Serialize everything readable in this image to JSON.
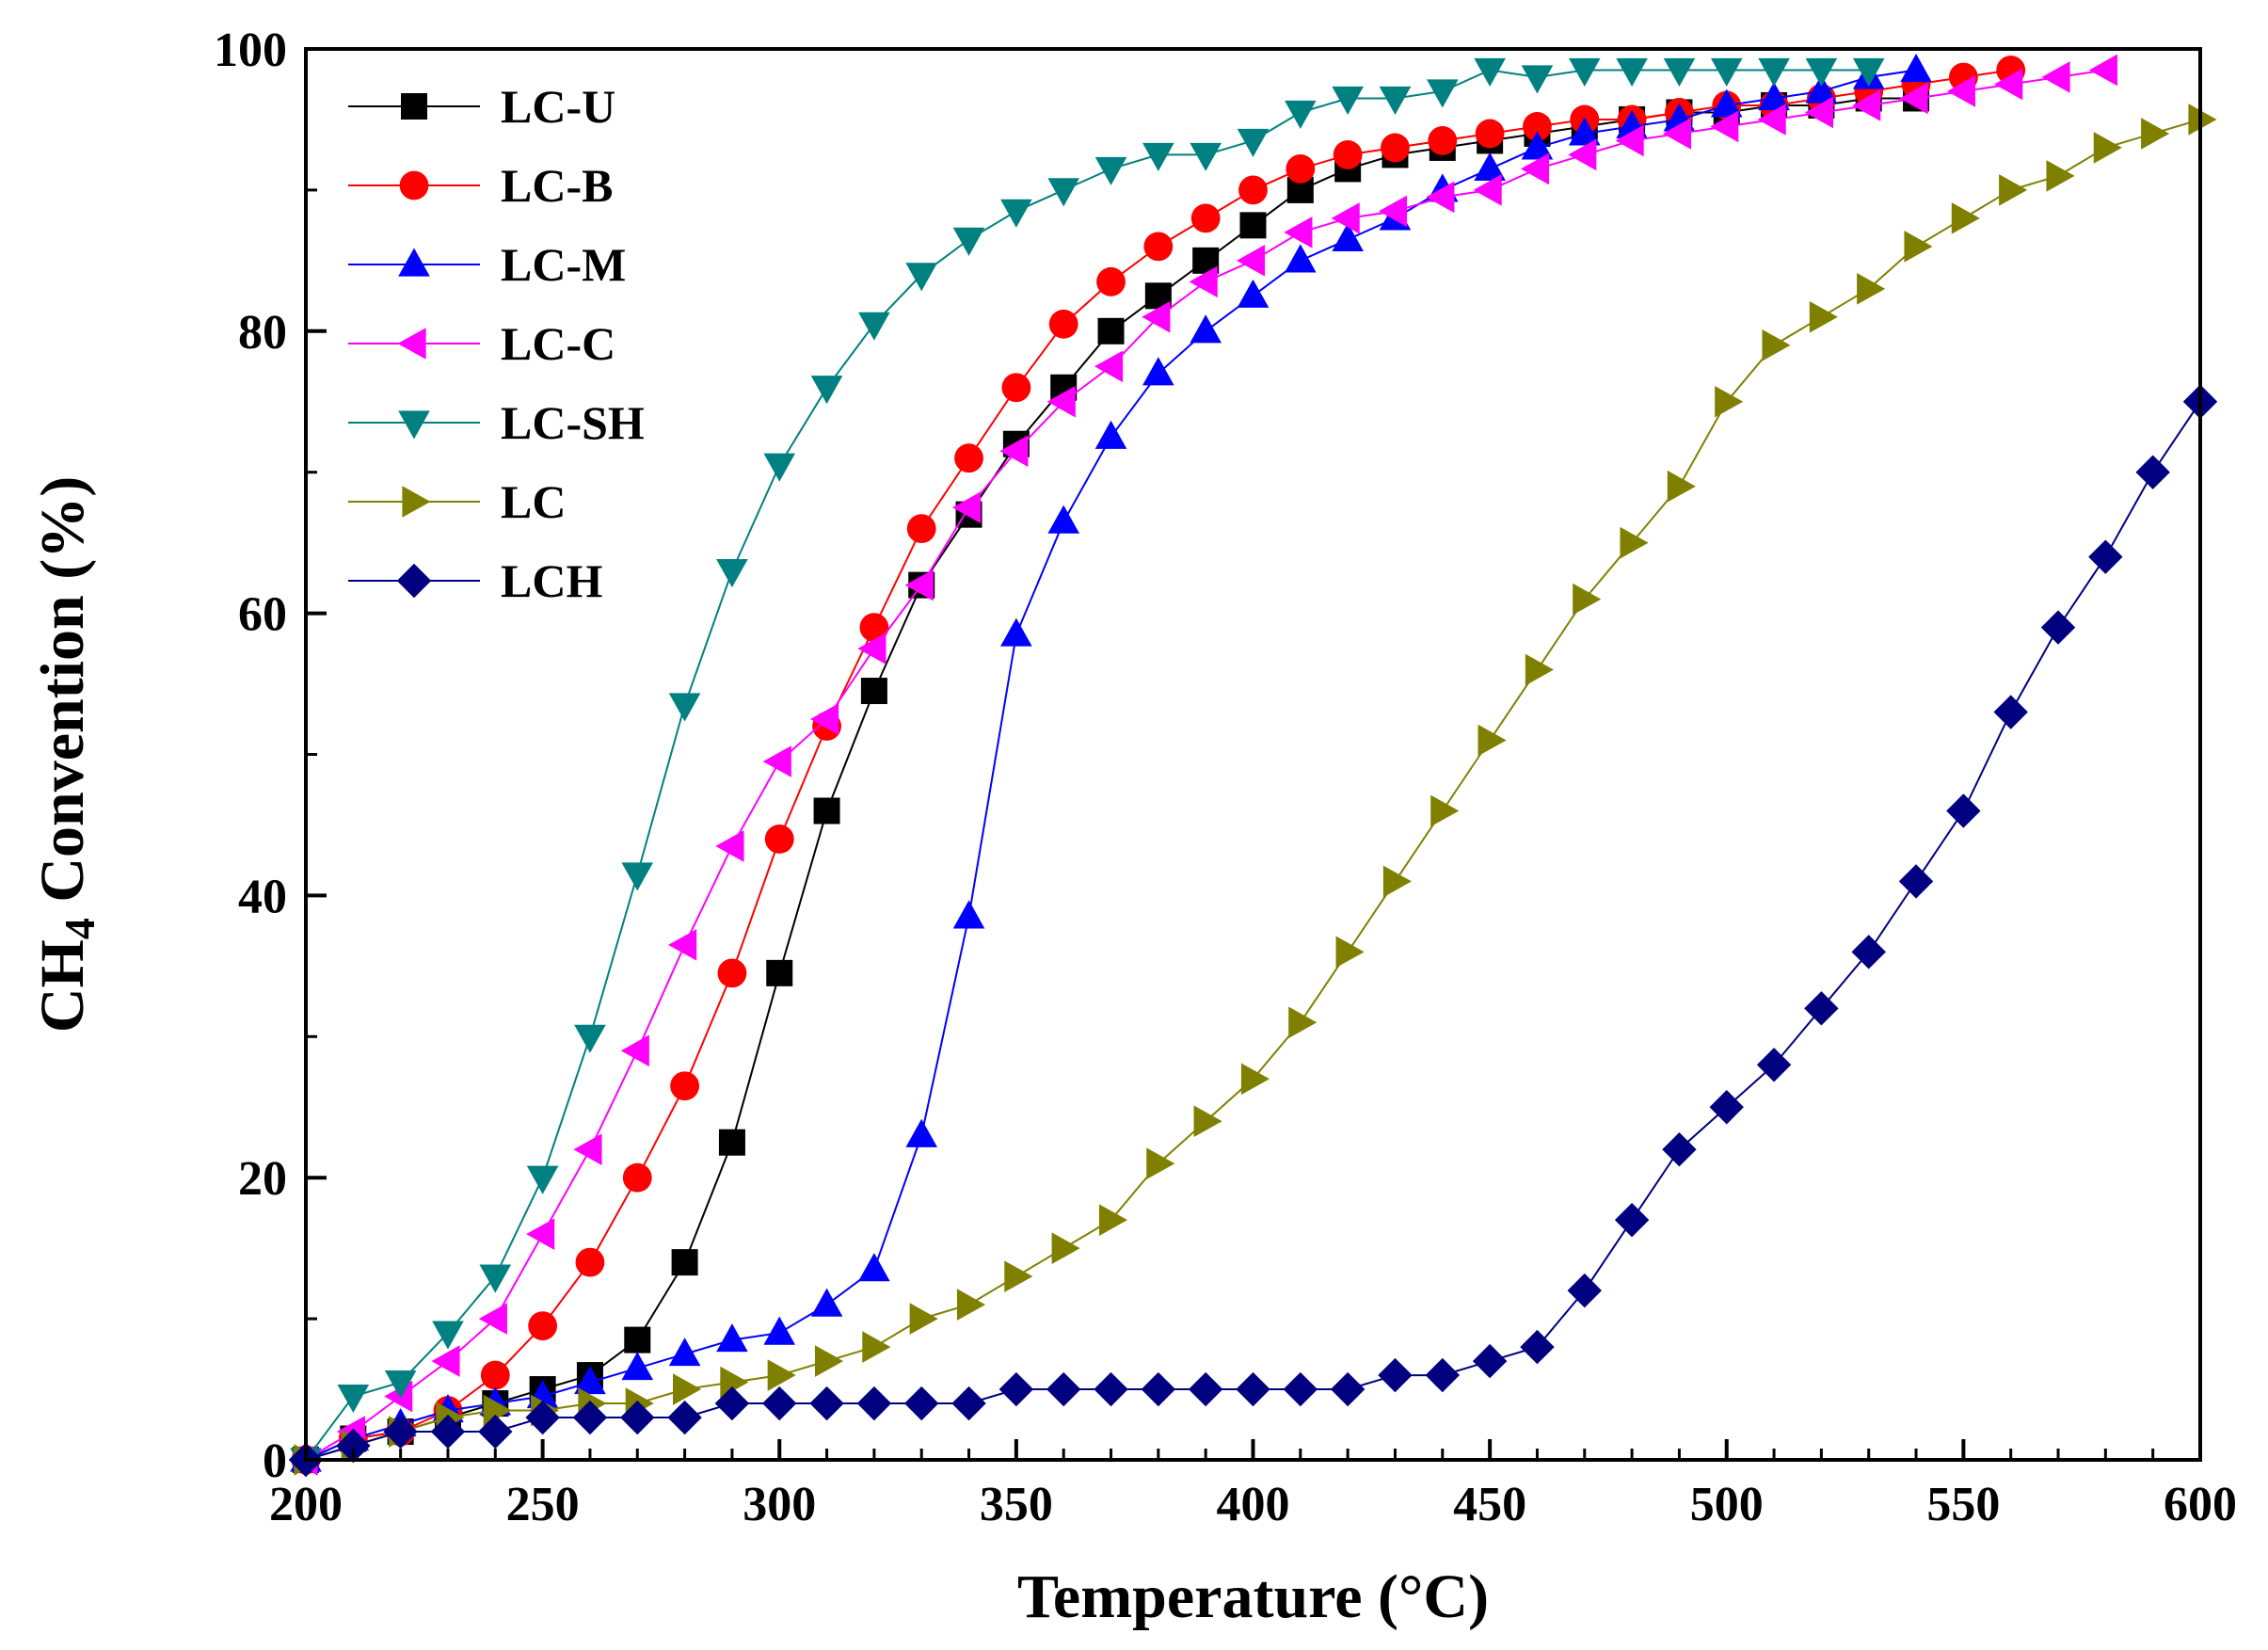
{
  "chart_data": {
    "type": "line",
    "title": "",
    "xlabel": "Temperature (°C)",
    "ylabel_main": "CH",
    "ylabel_sub": "4",
    "ylabel_rest": " Convention (%)",
    "xlim": [
      200,
      600
    ],
    "ylim": [
      0,
      100
    ],
    "xticks": [
      200,
      250,
      300,
      350,
      400,
      450,
      500,
      550,
      600
    ],
    "xtick_labels": [
      "200",
      "250",
      "300",
      "350",
      "400",
      "450",
      "500",
      "550",
      "600"
    ],
    "yticks": [
      0,
      20,
      40,
      60,
      80,
      100
    ],
    "ytick_labels": [
      "0",
      "20",
      "40",
      "60",
      "80",
      "100"
    ],
    "grid": false,
    "legend_position": "top-left",
    "series": [
      {
        "name": "LC-U",
        "color": "#000000",
        "marker": "square",
        "x": [
          200,
          210,
          220,
          230,
          240,
          250,
          260,
          270,
          280,
          290,
          300,
          310,
          320,
          330,
          340,
          350,
          360,
          370,
          380,
          390,
          400,
          410,
          420,
          430,
          440,
          450,
          460,
          470,
          480,
          490,
          500,
          510,
          520,
          530,
          540
        ],
        "y": [
          0,
          1.5,
          2,
          3,
          4,
          5,
          6,
          8.5,
          14,
          22.5,
          34.5,
          46,
          54.5,
          62,
          67,
          72,
          76,
          80,
          82.5,
          85,
          87.5,
          90,
          91.5,
          92.5,
          93,
          93.5,
          94,
          94.5,
          95,
          95.5,
          95.5,
          96,
          96,
          96.5,
          96.5
        ]
      },
      {
        "name": "LC-B",
        "color": "#ff0000",
        "marker": "circle",
        "x": [
          200,
          210,
          220,
          230,
          240,
          250,
          260,
          270,
          280,
          290,
          300,
          310,
          320,
          330,
          340,
          350,
          360,
          370,
          380,
          390,
          400,
          410,
          420,
          430,
          440,
          450,
          460,
          470,
          480,
          490,
          500,
          510,
          520,
          530,
          540,
          550,
          560
        ],
        "y": [
          0,
          1.5,
          2,
          3.5,
          6,
          9.5,
          14,
          20,
          26.5,
          34.5,
          44,
          52,
          59,
          66,
          71,
          76,
          80.5,
          83.5,
          86,
          88,
          90,
          91.5,
          92.5,
          93,
          93.5,
          94,
          94.5,
          95,
          95,
          95.5,
          96,
          96,
          96.5,
          97,
          97.5,
          98,
          98.5
        ]
      },
      {
        "name": "LC-M",
        "color": "#0000ff",
        "marker": "triangle-up",
        "x": [
          200,
          210,
          220,
          230,
          240,
          250,
          260,
          270,
          280,
          290,
          300,
          310,
          320,
          330,
          340,
          350,
          360,
          370,
          380,
          390,
          400,
          410,
          420,
          430,
          440,
          450,
          460,
          470,
          480,
          490,
          500,
          510,
          520,
          530,
          540
        ],
        "y": [
          0,
          1.5,
          2.5,
          3.5,
          4,
          4.5,
          5.5,
          6.5,
          7.5,
          8.5,
          9,
          11,
          13.5,
          23,
          38.5,
          58.5,
          66.5,
          72.5,
          77,
          80,
          82.5,
          85,
          86.5,
          88,
          90,
          91.5,
          93,
          94,
          94.5,
          95,
          96,
          96.5,
          97,
          98,
          98.5
        ]
      },
      {
        "name": "LC-C",
        "color": "#ff00ff",
        "marker": "triangle-left",
        "x": [
          200,
          210,
          220,
          230,
          240,
          250,
          260,
          270,
          280,
          290,
          300,
          310,
          320,
          330,
          340,
          350,
          360,
          370,
          380,
          390,
          400,
          410,
          420,
          430,
          440,
          450,
          460,
          470,
          480,
          490,
          500,
          510,
          520,
          530,
          540,
          550,
          560,
          570,
          580
        ],
        "y": [
          0,
          2,
          4.5,
          7,
          10,
          16,
          22,
          29,
          36.5,
          43.5,
          49.5,
          52.5,
          57.5,
          62,
          67.5,
          71.5,
          75,
          77.5,
          81,
          83.5,
          85,
          87,
          88,
          88.5,
          89.5,
          90,
          91.5,
          92.5,
          93.5,
          94,
          94.5,
          95,
          95.5,
          96,
          96.5,
          97,
          97.5,
          98,
          98.5
        ]
      },
      {
        "name": "LC-SH",
        "color": "#008080",
        "marker": "triangle-down",
        "x": [
          200,
          210,
          220,
          230,
          240,
          250,
          260,
          270,
          280,
          290,
          300,
          310,
          320,
          330,
          340,
          350,
          360,
          370,
          380,
          390,
          400,
          410,
          420,
          430,
          440,
          450,
          460,
          470,
          480,
          490,
          500,
          510,
          520,
          530
        ],
        "y": [
          0,
          4.5,
          5.5,
          9,
          13,
          20,
          30,
          41.5,
          53.5,
          63,
          70.5,
          76,
          80.5,
          84,
          86.5,
          88.5,
          90,
          91.5,
          92.5,
          92.5,
          93.5,
          95.5,
          96.5,
          96.5,
          97,
          98.5,
          98,
          98.5,
          98.5,
          98.5,
          98.5,
          98.5,
          98.5,
          98.5
        ]
      },
      {
        "name": "LC",
        "color": "#808000",
        "marker": "triangle-right",
        "x": [
          200,
          210,
          220,
          230,
          240,
          250,
          260,
          270,
          280,
          290,
          300,
          310,
          320,
          330,
          340,
          350,
          360,
          370,
          380,
          390,
          400,
          410,
          420,
          430,
          440,
          450,
          460,
          470,
          480,
          490,
          500,
          510,
          520,
          530,
          540,
          550,
          560,
          570,
          580,
          590,
          600
        ],
        "y": [
          0,
          1,
          2,
          3,
          3.5,
          3.5,
          4,
          4,
          5,
          5.5,
          6,
          7,
          8,
          10,
          11,
          13,
          15,
          17,
          21,
          24,
          27,
          31,
          36,
          41,
          46,
          51,
          56,
          61,
          65,
          69,
          75,
          79,
          81,
          83,
          86,
          88,
          90,
          91,
          93,
          94,
          95
        ]
      },
      {
        "name": "LCH",
        "color": "#000080",
        "marker": "diamond",
        "x": [
          200,
          210,
          220,
          230,
          240,
          250,
          260,
          270,
          280,
          290,
          300,
          310,
          320,
          330,
          340,
          350,
          360,
          370,
          380,
          390,
          400,
          410,
          420,
          430,
          440,
          450,
          460,
          470,
          480,
          490,
          500,
          510,
          520,
          530,
          540,
          550,
          560,
          570,
          580,
          590,
          600
        ],
        "y": [
          0,
          1,
          2,
          2,
          2,
          3,
          3,
          3,
          3,
          4,
          4,
          4,
          4,
          4,
          4,
          5,
          5,
          5,
          5,
          5,
          5,
          5,
          5,
          6,
          6,
          7,
          8,
          12,
          17,
          22,
          25,
          28,
          32,
          36,
          41,
          46,
          53,
          59,
          64,
          70,
          75
        ]
      }
    ]
  }
}
